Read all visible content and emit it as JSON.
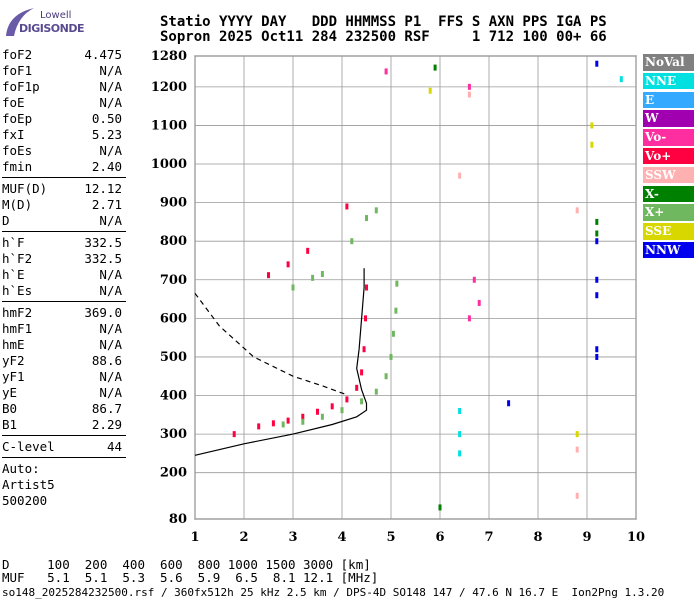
{
  "logo": {
    "line1": "Lowell",
    "line2": "DIGISONDE"
  },
  "header": {
    "line1": "Statio YYYY DAY   DDD HHMMSS P1  FFS S AXN PPS IGA PS",
    "line2": "Sopron 2025 Oct11 284 232500 RSF     1 712 100 00+ 66"
  },
  "params": [
    {
      "label": "foF2",
      "value": "4.475"
    },
    {
      "label": "foF1",
      "value": "N/A"
    },
    {
      "label": "foF1p",
      "value": "N/A"
    },
    {
      "label": "foE",
      "value": "N/A"
    },
    {
      "label": "foEp",
      "value": "0.50"
    },
    {
      "label": "fxI",
      "value": "5.23"
    },
    {
      "label": "foEs",
      "value": "N/A"
    },
    {
      "label": "fmin",
      "value": "2.40"
    },
    {
      "sep": true
    },
    {
      "label": "MUF(D)",
      "value": "12.12"
    },
    {
      "label": "M(D)",
      "value": "2.71"
    },
    {
      "label": "D",
      "value": "N/A"
    },
    {
      "sep": true
    },
    {
      "label": "h`F",
      "value": "332.5"
    },
    {
      "label": "h`F2",
      "value": "332.5"
    },
    {
      "label": "h`E",
      "value": "N/A"
    },
    {
      "label": "h`Es",
      "value": "N/A"
    },
    {
      "sep": true
    },
    {
      "label": "hmF2",
      "value": "369.0"
    },
    {
      "label": "hmF1",
      "value": "N/A"
    },
    {
      "label": "hmE",
      "value": "N/A"
    },
    {
      "label": "yF2",
      "value": "88.6"
    },
    {
      "label": "yF1",
      "value": "N/A"
    },
    {
      "label": "yE",
      "value": "N/A"
    },
    {
      "label": "B0",
      "value": "86.7"
    },
    {
      "label": "B1",
      "value": "2.29"
    },
    {
      "sep": true
    },
    {
      "label": "C-level",
      "value": "44"
    },
    {
      "sep": true
    },
    {
      "text": "Auto:"
    },
    {
      "text": "Artist5"
    },
    {
      "text": "500200"
    }
  ],
  "legend": [
    {
      "label": "NoVal",
      "color": "#808080"
    },
    {
      "label": "NNE",
      "color": "#00e0e0"
    },
    {
      "label": "E",
      "color": "#33aaff"
    },
    {
      "label": "W",
      "color": "#a000b0"
    },
    {
      "label": "Vo-",
      "color": "#ff2ea0"
    },
    {
      "label": "Vo+",
      "color": "#ff0040"
    },
    {
      "label": "SSW",
      "color": "#ffb0b0"
    },
    {
      "label": "X-",
      "color": "#008000"
    },
    {
      "label": "X+",
      "color": "#70b860"
    },
    {
      "label": "SSE",
      "color": "#d8d800"
    },
    {
      "label": "NNW",
      "color": "#0000ee"
    }
  ],
  "bottom": {
    "d_line": "D     100  200  400  600  800 1000 1500 3000 [km]",
    "muf_line": "MUF   5.1  5.1  5.3  5.6  5.9  6.5  8.1 12.1 [MHz]"
  },
  "footer": "so148_2025284232500.rsf / 360fx512h 25 kHz 2.5 km / DPS-4D SO148 147 / 47.6 N 16.7 E  Ion2Png 1.3.20",
  "chart_data": {
    "type": "scatter",
    "xlim": [
      1,
      10
    ],
    "ylim": [
      80,
      1280
    ],
    "xticks": [
      1,
      2,
      3,
      4,
      5,
      6,
      7,
      8,
      9,
      10
    ],
    "yticks": [
      80,
      200,
      300,
      400,
      500,
      600,
      700,
      800,
      900,
      1000,
      1100,
      1200,
      1280
    ],
    "grid": true,
    "series": [
      {
        "name": "Vo+",
        "color": "#ff0040",
        "points": [
          [
            1.8,
            300
          ],
          [
            2.3,
            320
          ],
          [
            2.6,
            328
          ],
          [
            2.9,
            335
          ],
          [
            3.2,
            345
          ],
          [
            3.5,
            358
          ],
          [
            3.8,
            372
          ],
          [
            4.1,
            390
          ],
          [
            4.3,
            420
          ],
          [
            4.4,
            460
          ],
          [
            4.45,
            520
          ],
          [
            4.48,
            600
          ],
          [
            4.5,
            680
          ],
          [
            2.5,
            712
          ],
          [
            2.9,
            740
          ],
          [
            3.3,
            775
          ],
          [
            4.1,
            890
          ]
        ]
      },
      {
        "name": "X+",
        "color": "#70b860",
        "points": [
          [
            2.8,
            325
          ],
          [
            3.2,
            332
          ],
          [
            3.6,
            345
          ],
          [
            4.0,
            362
          ],
          [
            4.4,
            385
          ],
          [
            4.7,
            410
          ],
          [
            4.9,
            450
          ],
          [
            5.0,
            500
          ],
          [
            5.05,
            560
          ],
          [
            5.1,
            620
          ],
          [
            5.12,
            690
          ],
          [
            3.0,
            680
          ],
          [
            3.4,
            705
          ],
          [
            3.6,
            715
          ],
          [
            4.2,
            800
          ],
          [
            4.5,
            860
          ],
          [
            4.7,
            880
          ]
        ]
      },
      {
        "name": "Vo-",
        "color": "#ff2ea0",
        "points": [
          [
            6.6,
            600
          ],
          [
            6.7,
            700
          ],
          [
            6.8,
            640
          ],
          [
            6.6,
            1200
          ],
          [
            4.9,
            1240
          ]
        ]
      },
      {
        "name": "NNW",
        "color": "#0000ee",
        "points": [
          [
            9.2,
            500
          ],
          [
            9.2,
            520
          ],
          [
            9.2,
            660
          ],
          [
            9.2,
            700
          ],
          [
            9.2,
            800
          ],
          [
            9.2,
            1260
          ],
          [
            7.4,
            380
          ]
        ]
      },
      {
        "name": "NNE",
        "color": "#00e0e0",
        "points": [
          [
            6.4,
            360
          ],
          [
            6.4,
            300
          ],
          [
            6.4,
            250
          ],
          [
            9.7,
            1220
          ]
        ]
      },
      {
        "name": "SSW",
        "color": "#ffb0b0",
        "points": [
          [
            8.8,
            880
          ],
          [
            8.8,
            260
          ],
          [
            8.8,
            140
          ],
          [
            6.4,
            970
          ],
          [
            6.6,
            1180
          ]
        ]
      },
      {
        "name": "SSE",
        "color": "#d8d800",
        "points": [
          [
            9.1,
            1100
          ],
          [
            9.1,
            1050
          ],
          [
            5.8,
            1190
          ],
          [
            8.8,
            300
          ]
        ]
      },
      {
        "name": "X-",
        "color": "#008000",
        "points": [
          [
            9.2,
            820
          ],
          [
            9.2,
            850
          ],
          [
            6.0,
            110
          ],
          [
            5.9,
            1250
          ]
        ]
      }
    ],
    "profile_solid": [
      [
        1,
        245
      ],
      [
        2,
        275
      ],
      [
        3,
        300
      ],
      [
        3.8,
        325
      ],
      [
        4.3,
        345
      ],
      [
        4.5,
        362
      ],
      [
        4.5,
        380
      ],
      [
        4.4,
        415
      ],
      [
        4.3,
        470
      ],
      [
        4.35,
        520
      ],
      [
        4.4,
        600
      ],
      [
        4.45,
        680
      ],
      [
        4.45,
        730
      ]
    ],
    "profile_dashed": [
      [
        1,
        665
      ],
      [
        1.5,
        580
      ],
      [
        2.2,
        500
      ],
      [
        3.0,
        450
      ],
      [
        3.6,
        425
      ],
      [
        4.1,
        402
      ]
    ]
  }
}
